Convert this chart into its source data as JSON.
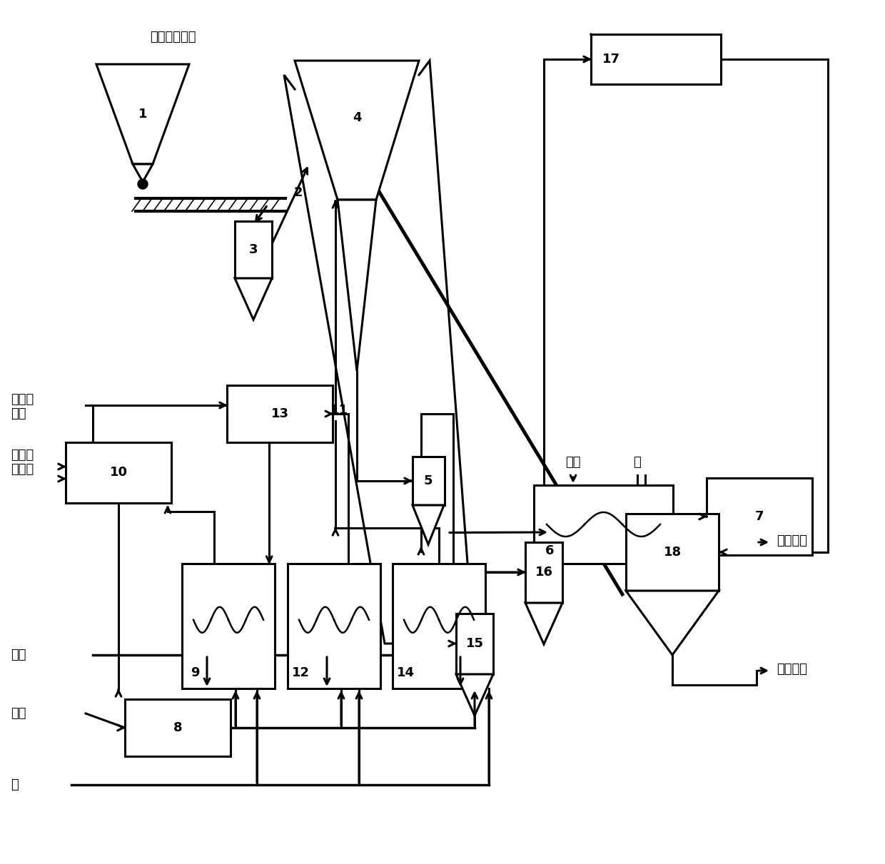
{
  "bg": "#ffffff",
  "lc": "#000000",
  "lw": 2.2,
  "fs_label": 13,
  "fs_num": 13,
  "labels": {
    "top": "正极材料粉体",
    "exhaust": "废气排放",
    "hcl": "盐酸溶液",
    "steam": "萙汽",
    "water_r": "水",
    "li_feed": "锂反应\n原料",
    "metal_feed": "金属反\n应原料",
    "carrier": "载气",
    "gas": "煤气",
    "water_b": "水"
  }
}
